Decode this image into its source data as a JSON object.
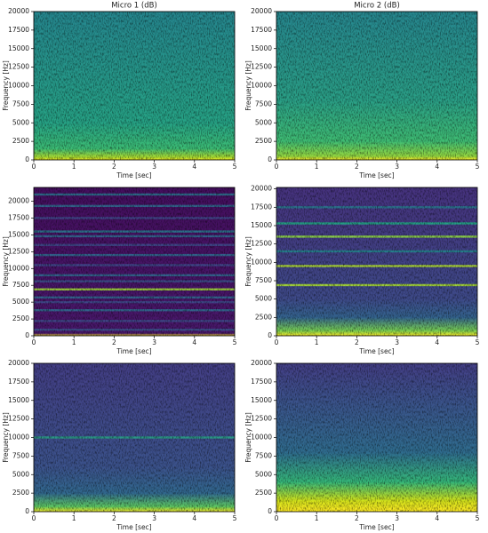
{
  "chart_data": [
    {
      "type": "spectrogram",
      "title": "Micro 1 (dB)",
      "xlabel": "Time [sec]",
      "ylabel": "Frequency [Hz]",
      "xlim": [
        0,
        5
      ],
      "xticks": [
        0,
        1,
        2,
        3,
        4,
        5
      ],
      "ylim": [
        0,
        20000
      ],
      "yticks": [
        0,
        2500,
        5000,
        7500,
        10000,
        12500,
        15000,
        17500,
        20000
      ],
      "color_by_frequency": [
        {
          "frequency": 0,
          "color": "#f5e51f"
        },
        {
          "frequency": 300,
          "color": "#b5de2b"
        },
        {
          "frequency": 1500,
          "color": "#3cbc74"
        },
        {
          "frequency": 5000,
          "color": "#26a285"
        },
        {
          "frequency": 20000,
          "color": "#25868e"
        }
      ],
      "lines": []
    },
    {
      "type": "spectrogram",
      "title": "Micro 2 (dB)",
      "xlabel": "Time [sec]",
      "ylabel": "Frequency [Hz]",
      "xlim": [
        0,
        5
      ],
      "xticks": [
        0,
        1,
        2,
        3,
        4,
        5
      ],
      "ylim": [
        0,
        20000
      ],
      "yticks": [
        0,
        2500,
        5000,
        7500,
        10000,
        12500,
        15000,
        17500,
        20000
      ],
      "color_by_frequency": [
        {
          "frequency": 0,
          "color": "#fde725"
        },
        {
          "frequency": 500,
          "color": "#95d840"
        },
        {
          "frequency": 2500,
          "color": "#3fbc73"
        },
        {
          "frequency": 8000,
          "color": "#2a9f86"
        },
        {
          "frequency": 20000,
          "color": "#26868e"
        }
      ],
      "lines": []
    },
    {
      "type": "spectrogram",
      "xlabel": "Time [sec]",
      "ylabel": "Frequency [Hz]",
      "xlim": [
        0,
        5
      ],
      "xticks": [
        0,
        1,
        2,
        3,
        4,
        5
      ],
      "ylim": [
        0,
        22050
      ],
      "yticks": [
        0,
        2500,
        5000,
        7500,
        10000,
        12500,
        15000,
        17500,
        20000
      ],
      "color_by_frequency": [
        {
          "frequency": 0,
          "color": "#fde725"
        },
        {
          "frequency": 400,
          "color": "#48186a"
        },
        {
          "frequency": 22050,
          "color": "#440f5e"
        }
      ],
      "lines": [
        {
          "frequency": 900,
          "color": "#3b528b"
        },
        {
          "frequency": 2200,
          "color": "#3e4a89"
        },
        {
          "frequency": 3800,
          "color": "#31688e"
        },
        {
          "frequency": 5000,
          "color": "#3e4a89"
        },
        {
          "frequency": 5700,
          "color": "#31688e"
        },
        {
          "frequency": 6900,
          "color": "#a0da39"
        },
        {
          "frequency": 8100,
          "color": "#3b528b"
        },
        {
          "frequency": 9000,
          "color": "#31688e"
        },
        {
          "frequency": 10500,
          "color": "#3e4a89"
        },
        {
          "frequency": 12000,
          "color": "#31688e"
        },
        {
          "frequency": 13500,
          "color": "#3e4a89"
        },
        {
          "frequency": 14800,
          "color": "#31688e"
        },
        {
          "frequency": 15500,
          "color": "#2a788e"
        },
        {
          "frequency": 17500,
          "color": "#3e4a89"
        },
        {
          "frequency": 19300,
          "color": "#31688e"
        },
        {
          "frequency": 21000,
          "color": "#2c728e"
        }
      ]
    },
    {
      "type": "spectrogram",
      "xlabel": "Time [sec]",
      "ylabel": "Frequency [Hz]",
      "xlim": [
        0,
        5
      ],
      "xticks": [
        0,
        1,
        2,
        3,
        4,
        5
      ],
      "ylim": [
        0,
        20200
      ],
      "yticks": [
        0,
        2500,
        5000,
        7500,
        10000,
        12500,
        15000,
        17500,
        20000
      ],
      "color_by_frequency": [
        {
          "frequency": 0,
          "color": "#fde725"
        },
        {
          "frequency": 700,
          "color": "#7ad151"
        },
        {
          "frequency": 2500,
          "color": "#33638d"
        },
        {
          "frequency": 5000,
          "color": "#3e4a89"
        },
        {
          "frequency": 20200,
          "color": "#46327e"
        }
      ],
      "lines": [
        {
          "frequency": 6900,
          "color": "#a8db34"
        },
        {
          "frequency": 9500,
          "color": "#b0dd2f"
        },
        {
          "frequency": 11500,
          "color": "#25858e"
        },
        {
          "frequency": 13500,
          "color": "#8fd744"
        },
        {
          "frequency": 15300,
          "color": "#22a884"
        },
        {
          "frequency": 17500,
          "color": "#2a788e"
        }
      ]
    },
    {
      "type": "spectrogram",
      "xlabel": "Time [sec]",
      "ylabel": "Frequency [Hz]",
      "xlim": [
        0,
        5
      ],
      "xticks": [
        0,
        1,
        2,
        3,
        4,
        5
      ],
      "ylim": [
        0,
        20000
      ],
      "yticks": [
        0,
        2500,
        5000,
        7500,
        10000,
        12500,
        15000,
        17500,
        20000
      ],
      "color_by_frequency": [
        {
          "frequency": 0,
          "color": "#fde725"
        },
        {
          "frequency": 700,
          "color": "#5ec962"
        },
        {
          "frequency": 2500,
          "color": "#31688e"
        },
        {
          "frequency": 6000,
          "color": "#3b528b"
        },
        {
          "frequency": 20000,
          "color": "#433e85"
        }
      ],
      "lines": [
        {
          "frequency": 10000,
          "color": "#2a9d86"
        }
      ]
    },
    {
      "type": "spectrogram",
      "xlabel": "Time [sec]",
      "ylabel": "Frequency [Hz]",
      "xlim": [
        0,
        5
      ],
      "xticks": [
        0,
        1,
        2,
        3,
        4,
        5
      ],
      "ylim": [
        0,
        20000
      ],
      "yticks": [
        0,
        2500,
        5000,
        7500,
        10000,
        12500,
        15000,
        17500,
        20000
      ],
      "color_by_frequency": [
        {
          "frequency": 0,
          "color": "#fde725"
        },
        {
          "frequency": 1500,
          "color": "#d2e21b"
        },
        {
          "frequency": 4000,
          "color": "#35b779"
        },
        {
          "frequency": 8000,
          "color": "#2f6c8e"
        },
        {
          "frequency": 15000,
          "color": "#3b528b"
        },
        {
          "frequency": 20000,
          "color": "#433e85"
        }
      ],
      "lines": []
    }
  ]
}
